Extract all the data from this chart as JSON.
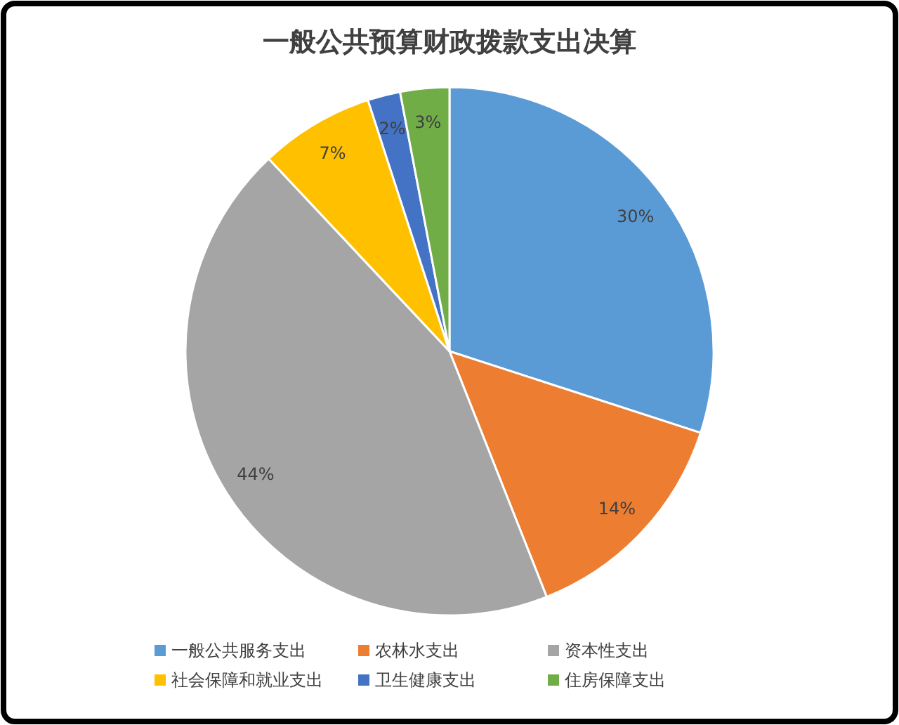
{
  "chart_data": {
    "type": "pie",
    "title": "一般公共预算财政拨款支出决算",
    "categories": [
      "一般公共服务支出",
      "农林水支出",
      "资本性支出",
      "社会保障和就业支出",
      "卫生健康支出",
      "住房保障支出"
    ],
    "values": [
      30,
      14,
      44,
      7,
      2,
      3
    ],
    "colors": [
      "#5b9bd5",
      "#ed7d31",
      "#a5a5a5",
      "#ffc000",
      "#4472c4",
      "#70ad47"
    ],
    "value_labels": [
      "30%",
      "14%",
      "44%",
      "7%",
      "2%",
      "3%"
    ],
    "legend": "bottom"
  }
}
